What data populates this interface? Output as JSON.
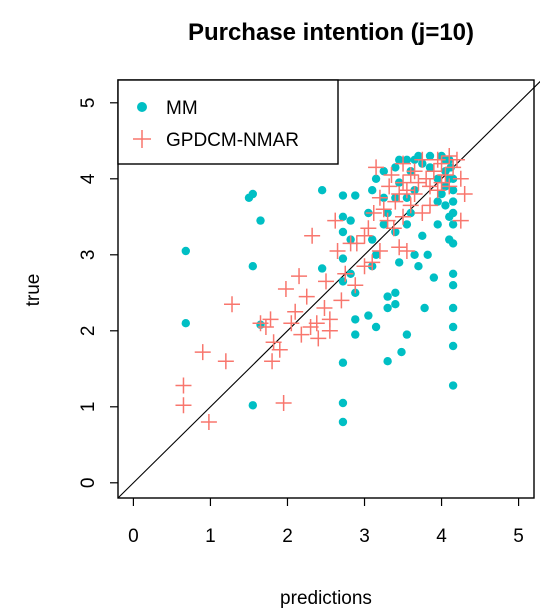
{
  "chart_data": {
    "type": "scatter",
    "title": "Purchase intention (j=10)",
    "xlabel": "predictions",
    "ylabel": "true",
    "xlim": [
      -0.2,
      5.2
    ],
    "ylim": [
      -0.2,
      5.3
    ],
    "x_ticks": [
      "0",
      "1",
      "2",
      "3",
      "4",
      "5"
    ],
    "y_ticks": [
      "0",
      "1",
      "2",
      "3",
      "4",
      "5"
    ],
    "grid": false,
    "legend_position": "top-left",
    "reference_line": "y = x",
    "colors": {
      "MM": "#00BFC4",
      "GPDCM-NMAR": "#F8766D",
      "axis": "#000000"
    },
    "series": [
      {
        "name": "MM",
        "marker": "filled-circle",
        "points": [
          [
            0.68,
            3.05
          ],
          [
            0.68,
            2.1
          ],
          [
            1.5,
            3.75
          ],
          [
            1.55,
            3.8
          ],
          [
            1.55,
            2.85
          ],
          [
            1.55,
            1.02
          ],
          [
            1.65,
            3.45
          ],
          [
            1.65,
            2.08
          ],
          [
            2.45,
            3.85
          ],
          [
            2.45,
            2.82
          ],
          [
            2.72,
            3.78
          ],
          [
            2.72,
            3.5
          ],
          [
            2.72,
            3.3
          ],
          [
            2.72,
            2.95
          ],
          [
            2.72,
            2.65
          ],
          [
            2.72,
            1.58
          ],
          [
            2.72,
            1.05
          ],
          [
            2.72,
            0.8
          ],
          [
            2.82,
            3.45
          ],
          [
            2.82,
            3.2
          ],
          [
            2.82,
            2.75
          ],
          [
            2.88,
            3.78
          ],
          [
            2.88,
            2.5
          ],
          [
            2.88,
            2.15
          ],
          [
            2.88,
            1.95
          ],
          [
            3.05,
            3.55
          ],
          [
            3.05,
            2.2
          ],
          [
            3.1,
            3.85
          ],
          [
            3.1,
            3.2
          ],
          [
            3.1,
            2.85
          ],
          [
            3.15,
            4.0
          ],
          [
            3.15,
            3.0
          ],
          [
            3.15,
            2.05
          ],
          [
            3.25,
            4.1
          ],
          [
            3.25,
            3.75
          ],
          [
            3.25,
            3.4
          ],
          [
            3.3,
            3.55
          ],
          [
            3.3,
            2.45
          ],
          [
            3.3,
            2.3
          ],
          [
            3.3,
            1.6
          ],
          [
            3.4,
            4.15
          ],
          [
            3.4,
            3.75
          ],
          [
            3.4,
            3.3
          ],
          [
            3.4,
            2.5
          ],
          [
            3.4,
            2.35
          ],
          [
            3.45,
            4.25
          ],
          [
            3.45,
            3.95
          ],
          [
            3.45,
            2.9
          ],
          [
            3.48,
            1.72
          ],
          [
            3.55,
            4.25
          ],
          [
            3.55,
            3.75
          ],
          [
            3.55,
            3.4
          ],
          [
            3.55,
            1.95
          ],
          [
            3.6,
            4.1
          ],
          [
            3.6,
            3.55
          ],
          [
            3.65,
            4.25
          ],
          [
            3.65,
            3.85
          ],
          [
            3.65,
            3.0
          ],
          [
            3.7,
            4.3
          ],
          [
            3.7,
            2.85
          ],
          [
            3.75,
            4.2
          ],
          [
            3.75,
            3.25
          ],
          [
            3.78,
            2.3
          ],
          [
            3.82,
            3.0
          ],
          [
            3.85,
            4.3
          ],
          [
            3.85,
            4.15
          ],
          [
            3.9,
            2.7
          ],
          [
            3.95,
            4.0
          ],
          [
            3.95,
            3.7
          ],
          [
            3.95,
            3.4
          ],
          [
            4.0,
            4.3
          ],
          [
            4.0,
            3.8
          ],
          [
            4.05,
            4.25
          ],
          [
            4.05,
            4.1
          ],
          [
            4.05,
            3.9
          ],
          [
            4.05,
            3.65
          ],
          [
            4.1,
            4.25
          ],
          [
            4.1,
            4.0
          ],
          [
            4.1,
            3.5
          ],
          [
            4.1,
            3.2
          ],
          [
            4.12,
            4.15
          ],
          [
            4.15,
            4.0
          ],
          [
            4.15,
            3.85
          ],
          [
            4.15,
            3.7
          ],
          [
            4.15,
            3.55
          ],
          [
            4.15,
            3.4
          ],
          [
            4.15,
            3.15
          ],
          [
            4.15,
            2.75
          ],
          [
            4.15,
            2.6
          ],
          [
            4.15,
            2.3
          ],
          [
            4.15,
            2.05
          ],
          [
            4.15,
            1.8
          ],
          [
            4.15,
            1.28
          ]
        ]
      },
      {
        "name": "GPDCM-NMAR",
        "marker": "plus",
        "points": [
          [
            0.65,
            1.28
          ],
          [
            0.65,
            1.02
          ],
          [
            0.9,
            1.72
          ],
          [
            0.98,
            0.8
          ],
          [
            1.2,
            1.6
          ],
          [
            1.28,
            2.35
          ],
          [
            1.65,
            2.1
          ],
          [
            1.72,
            2.05
          ],
          [
            1.78,
            2.15
          ],
          [
            1.8,
            1.6
          ],
          [
            1.82,
            1.85
          ],
          [
            1.9,
            1.75
          ],
          [
            1.95,
            1.05
          ],
          [
            1.98,
            2.55
          ],
          [
            2.05,
            2.1
          ],
          [
            2.1,
            2.25
          ],
          [
            2.15,
            2.72
          ],
          [
            2.18,
            1.95
          ],
          [
            2.25,
            2.45
          ],
          [
            2.3,
            2.05
          ],
          [
            2.32,
            3.25
          ],
          [
            2.38,
            2.1
          ],
          [
            2.4,
            1.9
          ],
          [
            2.48,
            2.3
          ],
          [
            2.5,
            2.65
          ],
          [
            2.55,
            2.15
          ],
          [
            2.55,
            2.0
          ],
          [
            2.62,
            3.45
          ],
          [
            2.65,
            3.05
          ],
          [
            2.7,
            2.4
          ],
          [
            2.75,
            2.75
          ],
          [
            2.82,
            3.15
          ],
          [
            2.88,
            2.6
          ],
          [
            2.9,
            3.15
          ],
          [
            3.0,
            3.25
          ],
          [
            3.0,
            2.85
          ],
          [
            3.05,
            3.35
          ],
          [
            3.1,
            2.9
          ],
          [
            3.12,
            3.55
          ],
          [
            3.15,
            4.15
          ],
          [
            3.2,
            3.05
          ],
          [
            3.2,
            3.75
          ],
          [
            3.25,
            3.6
          ],
          [
            3.3,
            3.45
          ],
          [
            3.32,
            3.9
          ],
          [
            3.35,
            4.05
          ],
          [
            3.38,
            3.35
          ],
          [
            3.4,
            3.7
          ],
          [
            3.45,
            3.8
          ],
          [
            3.45,
            3.1
          ],
          [
            3.5,
            3.95
          ],
          [
            3.5,
            4.2
          ],
          [
            3.5,
            3.5
          ],
          [
            3.55,
            3.05
          ],
          [
            3.55,
            3.85
          ],
          [
            3.6,
            4.05
          ],
          [
            3.6,
            3.65
          ],
          [
            3.65,
            4.1
          ],
          [
            3.65,
            3.8
          ],
          [
            3.7,
            3.95
          ],
          [
            3.75,
            4.25
          ],
          [
            3.75,
            3.55
          ],
          [
            3.8,
            4.0
          ],
          [
            3.85,
            3.9
          ],
          [
            3.85,
            3.65
          ],
          [
            3.9,
            4.1
          ],
          [
            3.95,
            4.25
          ],
          [
            3.95,
            3.85
          ],
          [
            4.0,
            4.2
          ],
          [
            4.0,
            3.95
          ],
          [
            4.05,
            4.05
          ],
          [
            4.1,
            4.3
          ],
          [
            4.1,
            3.9
          ],
          [
            4.15,
            4.15
          ],
          [
            4.2,
            4.25
          ],
          [
            4.25,
            4.0
          ],
          [
            4.25,
            3.45
          ],
          [
            4.3,
            3.8
          ]
        ]
      }
    ]
  }
}
